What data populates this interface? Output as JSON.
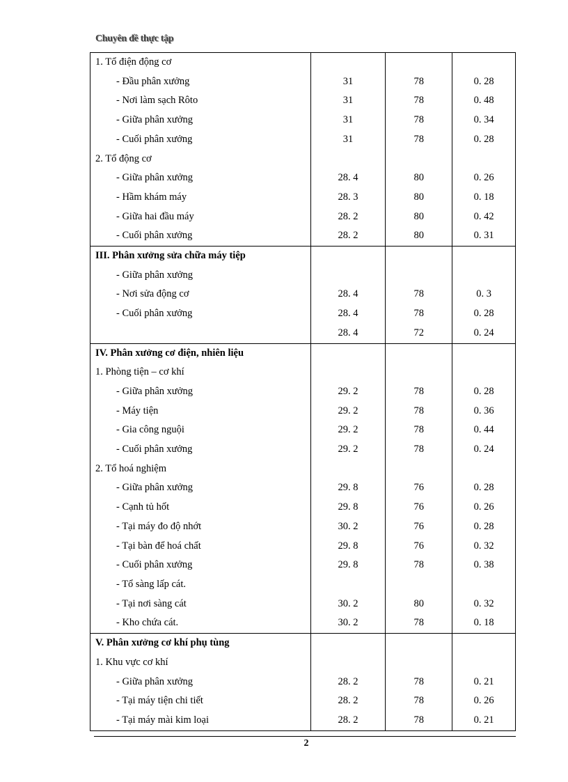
{
  "header": {
    "title": "Chuyên đề thực tập"
  },
  "footer": {
    "page_number": "2"
  },
  "groups": [
    {
      "rows": [
        {
          "label": "1. Tổ điện động cơ",
          "type": "sub",
          "a": "",
          "b": "",
          "c": ""
        },
        {
          "label": "- Đầu phân xưởng",
          "type": "item",
          "a": "31",
          "b": "78",
          "c": "0. 28"
        },
        {
          "label": "- Nơi làm sạch Rôto",
          "type": "item",
          "a": "31",
          "b": "78",
          "c": "0. 48"
        },
        {
          "label": "- Giữa phân xưởng",
          "type": "item",
          "a": "31",
          "b": "78",
          "c": "0. 34"
        },
        {
          "label": "- Cuối phân xưởng",
          "type": "item",
          "a": "31",
          "b": "78",
          "c": "0. 28"
        },
        {
          "label": "2. Tổ động cơ",
          "type": "sub",
          "a": "",
          "b": "",
          "c": ""
        },
        {
          "label": "- Giữa phân xưởng",
          "type": "item",
          "a": "28. 4",
          "b": "80",
          "c": "0. 26"
        },
        {
          "label": "- Hầm khám máy",
          "type": "item",
          "a": "28. 3",
          "b": "80",
          "c": "0. 18"
        },
        {
          "label": "- Giữa hai đầu máy",
          "type": "item",
          "a": "28. 2",
          "b": "80",
          "c": "0. 42"
        },
        {
          "label": "- Cuối phân xưởng",
          "type": "item",
          "a": "28. 2",
          "b": "80",
          "c": "0. 31"
        }
      ]
    },
    {
      "rows": [
        {
          "label": "III. Phân xưởng sửa chữa máy tiệp",
          "type": "head",
          "a": "",
          "b": "",
          "c": ""
        },
        {
          "label": "- Giữa phân xưởng",
          "type": "item",
          "a": "",
          "b": "",
          "c": ""
        },
        {
          "label": "- Nơi sửa động cơ",
          "type": "item",
          "a": "28. 4",
          "b": "78",
          "c": "0. 3"
        },
        {
          "label": "- Cuối phân xưởng",
          "type": "item",
          "a": "28. 4",
          "b": "78",
          "c": "0. 28"
        },
        {
          "label": "",
          "type": "item",
          "a": "28. 4",
          "b": "72",
          "c": "0. 24"
        }
      ]
    },
    {
      "rows": [
        {
          "label": "IV. Phân xưởng cơ điện, nhiên liệu",
          "type": "head",
          "a": "",
          "b": "",
          "c": ""
        },
        {
          "label": "1. Phòng tiện – cơ khí",
          "type": "sub",
          "a": "",
          "b": "",
          "c": ""
        },
        {
          "label": "- Giữa phân xưởng",
          "type": "item",
          "a": "29. 2",
          "b": "78",
          "c": "0. 28"
        },
        {
          "label": "- Máy tiện",
          "type": "item",
          "a": "29. 2",
          "b": "78",
          "c": "0. 36"
        },
        {
          "label": "- Gia công nguội",
          "type": "item",
          "a": "29. 2",
          "b": "78",
          "c": "0. 44"
        },
        {
          "label": "- Cuối phân xưởng",
          "type": "item",
          "a": "29. 2",
          "b": "78",
          "c": "0. 24"
        },
        {
          "label": "2. Tổ hoá nghiệm",
          "type": "sub",
          "a": "",
          "b": "",
          "c": ""
        },
        {
          "label": "- Giữa phân xưởng",
          "type": "item",
          "a": "29. 8",
          "b": "76",
          "c": "0. 28"
        },
        {
          "label": "- Cạnh tủ hốt",
          "type": "item",
          "a": "29. 8",
          "b": "76",
          "c": "0. 26"
        },
        {
          "label": "- Tại máy đo độ nhớt",
          "type": "item",
          "a": "30. 2",
          "b": "76",
          "c": "0. 28"
        },
        {
          "label": "- Tại bàn để hoá chất",
          "type": "item",
          "a": "29. 8",
          "b": "76",
          "c": "0. 32"
        },
        {
          "label": "- Cuối phân xưởng",
          "type": "item",
          "a": "29. 8",
          "b": "78",
          "c": "0. 38"
        },
        {
          "label": "- Tổ sàng lấp cát.",
          "type": "item",
          "a": "",
          "b": "",
          "c": ""
        },
        {
          "label": "- Tại nơi sàng cát",
          "type": "item",
          "a": "30. 2",
          "b": "80",
          "c": "0. 32"
        },
        {
          "label": "- Kho chứa cát.",
          "type": "item",
          "a": "30. 2",
          "b": "78",
          "c": "0. 18"
        }
      ]
    },
    {
      "rows": [
        {
          "label": "V. Phân xưởng cơ khí phụ tùng",
          "type": "head",
          "a": "",
          "b": "",
          "c": ""
        },
        {
          "label": "1. Khu vực cơ khí",
          "type": "sub",
          "a": "",
          "b": "",
          "c": ""
        },
        {
          "label": "- Giữa phân xưởng",
          "type": "item",
          "a": "28. 2",
          "b": "78",
          "c": "0. 21"
        },
        {
          "label": "- Tại máy tiện chi tiết",
          "type": "item",
          "a": "28. 2",
          "b": "78",
          "c": "0. 26"
        },
        {
          "label": "- Tại máy mài kim loại",
          "type": "item",
          "a": "28. 2",
          "b": "78",
          "c": "0. 21"
        }
      ]
    }
  ]
}
